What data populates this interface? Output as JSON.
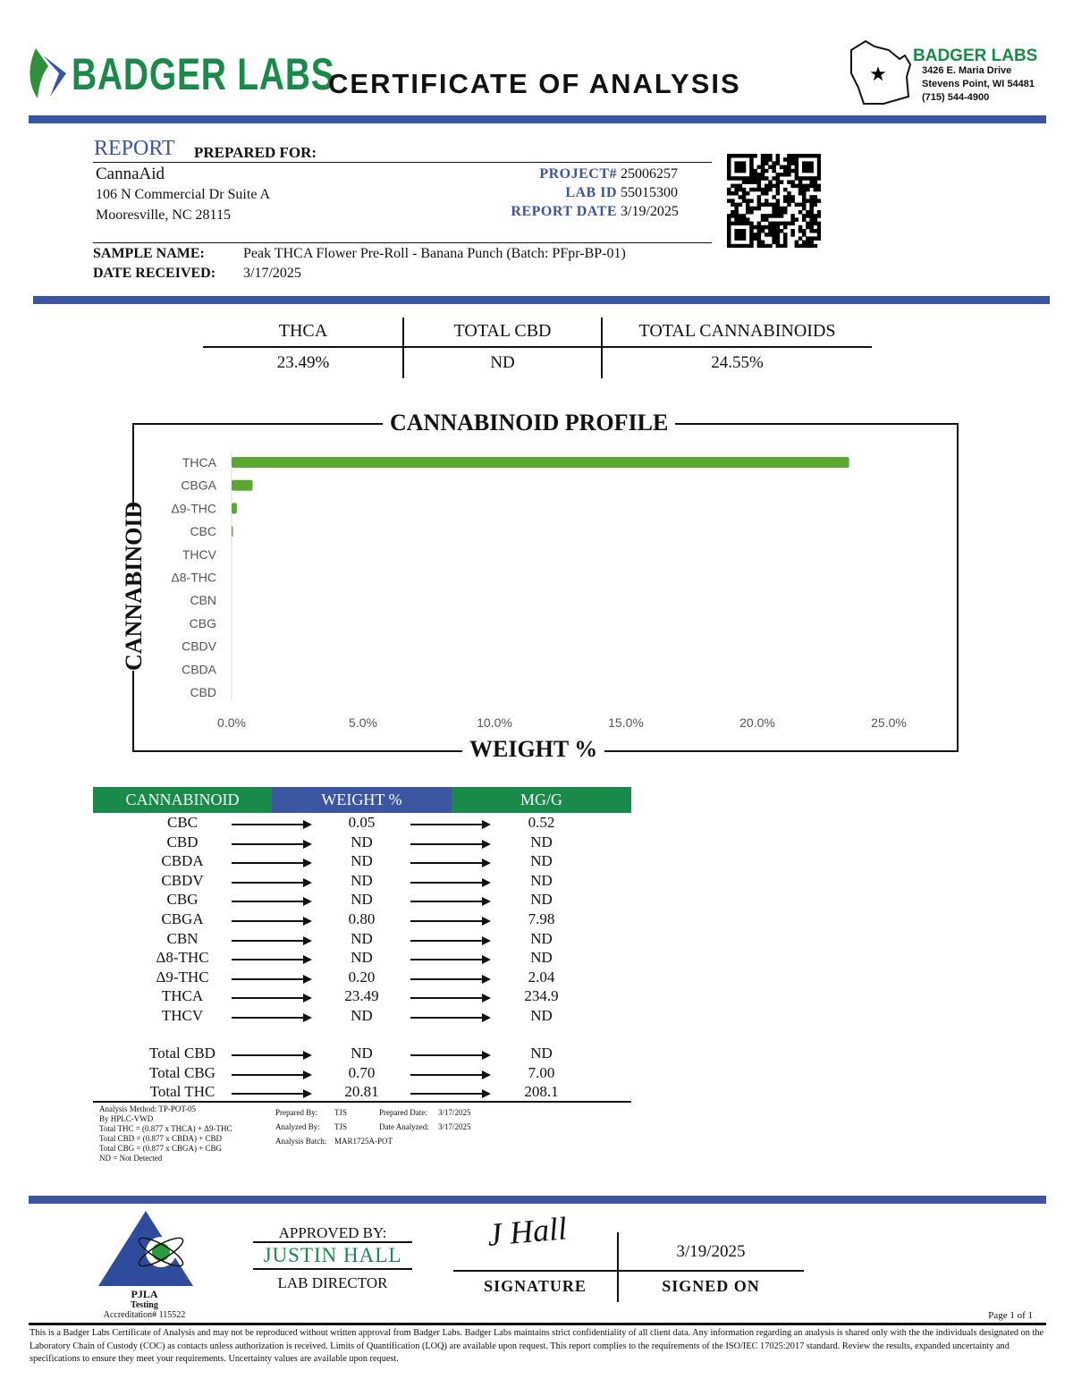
{
  "header": {
    "logo_text": "BADGER LABS",
    "title": "CERTIFICATE OF ANALYSIS",
    "lab_name": "BADGER LABS",
    "address1": "3426 E. Maria Drive",
    "address2": "Stevens Point, WI 54481",
    "phone": "(715) 544-4900"
  },
  "client": {
    "report_label": "REPORT",
    "prepared_for": "PREPARED FOR:",
    "name": "CannaAid",
    "address1": "106 N Commercial Dr Suite A",
    "address2": "Mooresville, NC 28115"
  },
  "meta": {
    "project_label": "PROJECT#",
    "project": "25006257",
    "labid_label": "LAB ID",
    "labid": "55015300",
    "date_label": "REPORT DATE",
    "date": "3/19/2025"
  },
  "sample": {
    "name_label": "SAMPLE NAME:",
    "name": "Peak THCA Flower Pre-Roll - Banana Punch (Batch: PFpr-BP-01)",
    "received_label": "DATE RECEIVED:",
    "received": "3/17/2025"
  },
  "summary": [
    {
      "label": "THCA",
      "value": "23.49%"
    },
    {
      "label": "TOTAL CBD",
      "value": "ND"
    },
    {
      "label": "TOTAL CANNABINOIDS",
      "value": "24.55%"
    }
  ],
  "chart_data": {
    "type": "bar",
    "orientation": "horizontal",
    "title": "CANNABINOID PROFILE",
    "xlabel": "WEIGHT %",
    "ylabel": "CANNABINOID",
    "categories": [
      "THCA",
      "CBGA",
      "Δ9-THC",
      "CBC",
      "THCV",
      "Δ8-THC",
      "CBN",
      "CBG",
      "CBDV",
      "CBDA",
      "CBD"
    ],
    "values": [
      23.49,
      0.8,
      0.2,
      0.05,
      0,
      0,
      0,
      0,
      0,
      0,
      0
    ],
    "xlim": [
      0,
      25
    ],
    "xticks": [
      "0.0%",
      "5.0%",
      "10.0%",
      "15.0%",
      "20.0%",
      "25.0%"
    ],
    "grid": false,
    "color": "#5aa832"
  },
  "table": {
    "headers": [
      "CANNABINOID",
      "WEIGHT %",
      "MG/G"
    ],
    "rows": [
      [
        "CBC",
        "0.05",
        "0.52"
      ],
      [
        "CBD",
        "ND",
        "ND"
      ],
      [
        "CBDA",
        "ND",
        "ND"
      ],
      [
        "CBDV",
        "ND",
        "ND"
      ],
      [
        "CBG",
        "ND",
        "ND"
      ],
      [
        "CBGA",
        "0.80",
        "7.98"
      ],
      [
        "CBN",
        "ND",
        "ND"
      ],
      [
        "Δ8-THC",
        "ND",
        "ND"
      ],
      [
        "Δ9-THC",
        "0.20",
        "2.04"
      ],
      [
        "THCA",
        "23.49",
        "234.9"
      ],
      [
        "THCV",
        "ND",
        "ND"
      ]
    ],
    "totals": [
      [
        "Total CBD",
        "ND",
        "ND"
      ],
      [
        "Total CBG",
        "0.70",
        "7.00"
      ],
      [
        "Total THC",
        "20.81",
        "208.1"
      ]
    ]
  },
  "notes": [
    "Analysis Method: TP-POT-05",
    "By HPLC-VWD",
    "Total THC = (0.877 x  THCA) + Δ9-THC",
    "Total CBD = (0.877 x  CBDA) + CBD",
    "Total CBG = (0.877 x  CBGA) + CBG",
    "ND = Not Detected"
  ],
  "prep": {
    "prepared_by_label": "Prepared By:",
    "prepared_by": "TJS",
    "analyzed_by_label": "Analyzed By:",
    "analyzed_by": "TJS",
    "batch_label": "Analysis Batch:",
    "batch": "MAR1725A-POT",
    "prepared_date_label": "Prepared Date:",
    "prepared_date": "3/17/2025",
    "analyzed_date_label": "Date Analyzed:",
    "analyzed_date": "3/17/2025"
  },
  "approval": {
    "pjla": "PJLA",
    "testing": "Testing",
    "accreditation": "Accreditation# 115522",
    "approved_by": "APPROVED BY:",
    "name": "JUSTIN HALL",
    "role": "LAB DIRECTOR",
    "signature": "J Hall",
    "signature_label": "SIGNATURE",
    "signed_date": "3/19/2025",
    "signed_on_label": "SIGNED ON"
  },
  "footer": {
    "page": "Page 1 of 1",
    "disclaimer": "This is a Badger Labs Certificate of Analysis and may not be reproduced without written approval from Badger Labs. Badger Labs maintains strict confidentiality of all client data. Any information regarding an analysis is shared only with the the individuals designated on the Laboratory Chain of Custody (COC) as contacts unless authorization is received. Limits of Quantification (LOQ) are available upon request. This report complies to the requirements of the ISO/IEC 17025:2017 standard. Review the results, expanded uncertainty and specifications to ensure they meet your requirements. Uncertainty values are available upon request."
  },
  "colors": {
    "blue": "#3b55a0",
    "green": "#1a8a4a",
    "bar": "#5aa832"
  }
}
